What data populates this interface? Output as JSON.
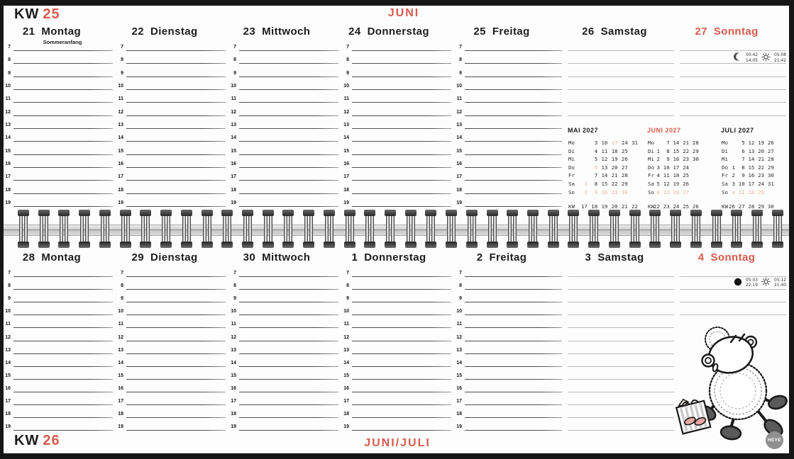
{
  "accent_color": "#d65b4d",
  "pale_accent_color": "#e9b2a4",
  "logo": "HEYE",
  "hours": [
    "7",
    "8",
    "9",
    "10",
    "11",
    "12",
    "13",
    "14",
    "15",
    "16",
    "17",
    "18",
    "19"
  ],
  "top": {
    "kw_label": "KW",
    "kw_number": "25",
    "title": "JUNI",
    "days": [
      {
        "num": "21",
        "name": "Montag",
        "note": "Sommeranfang"
      },
      {
        "num": "22",
        "name": "Dienstag"
      },
      {
        "num": "23",
        "name": "Mittwoch"
      },
      {
        "num": "24",
        "name": "Donnerstag"
      },
      {
        "num": "25",
        "name": "Freitag"
      },
      {
        "num": "26",
        "name": "Samstag"
      },
      {
        "num": "27",
        "name": "Sonntag"
      }
    ],
    "astro": {
      "moon_phase": "waning-crescent",
      "moon_times": [
        "00:42",
        "14:05"
      ],
      "sun_times": [
        "05:08",
        "21:42"
      ]
    }
  },
  "bottom": {
    "kw_label": "KW",
    "kw_number": "26",
    "title": "JUNI/JULI",
    "days": [
      {
        "num": "28",
        "name": "Montag"
      },
      {
        "num": "29",
        "name": "Dienstag"
      },
      {
        "num": "30",
        "name": "Mittwoch"
      },
      {
        "num": "1",
        "name": "Donnerstag"
      },
      {
        "num": "2",
        "name": "Freitag"
      },
      {
        "num": "3",
        "name": "Samstag"
      },
      {
        "num": "4",
        "name": "Sonntag"
      }
    ],
    "astro": {
      "moon_phase": "new-moon",
      "moon_times": [
        "05:03",
        "22:19"
      ],
      "sun_times": [
        "05:12",
        "21:40"
      ]
    }
  },
  "mini_calendars": [
    {
      "title": "MAI 2027",
      "accent": false,
      "rows": [
        {
          "label": "Mo",
          "cells": [
            "",
            "3",
            "10",
            "17",
            "24",
            "31"
          ],
          "hl": [
            3
          ]
        },
        {
          "label": "Di",
          "cells": [
            "",
            "4",
            "11",
            "18",
            "25",
            ""
          ],
          "hl": []
        },
        {
          "label": "Mi",
          "cells": [
            "",
            "5",
            "12",
            "19",
            "26",
            ""
          ],
          "hl": []
        },
        {
          "label": "Do",
          "cells": [
            "",
            "6",
            "13",
            "20",
            "27",
            ""
          ],
          "hl": [
            1
          ]
        },
        {
          "label": "Fr",
          "cells": [
            "",
            "7",
            "14",
            "21",
            "28",
            ""
          ],
          "hl": []
        },
        {
          "label": "Sa",
          "cells": [
            "1",
            "8",
            "15",
            "22",
            "29",
            ""
          ],
          "hl": [
            0
          ]
        },
        {
          "label": "So",
          "cells": [
            "2",
            "9",
            "16",
            "23",
            "30",
            ""
          ],
          "hl": [
            0,
            1,
            2,
            3,
            4
          ]
        }
      ],
      "kw_label": "KW",
      "kw": [
        "17",
        "18",
        "19",
        "20",
        "21",
        "22"
      ]
    },
    {
      "title": "JUNI 2027",
      "accent": true,
      "rows": [
        {
          "label": "Mo",
          "cells": [
            "",
            "7",
            "14",
            "21",
            "28"
          ],
          "hl": []
        },
        {
          "label": "Di",
          "cells": [
            "1",
            "8",
            "15",
            "22",
            "29"
          ],
          "hl": []
        },
        {
          "label": "Mi",
          "cells": [
            "2",
            "9",
            "16",
            "23",
            "30"
          ],
          "hl": []
        },
        {
          "label": "Do",
          "cells": [
            "3",
            "10",
            "17",
            "24",
            ""
          ],
          "hl": []
        },
        {
          "label": "Fr",
          "cells": [
            "4",
            "11",
            "18",
            "25",
            ""
          ],
          "hl": []
        },
        {
          "label": "Sa",
          "cells": [
            "5",
            "12",
            "19",
            "26",
            ""
          ],
          "hl": []
        },
        {
          "label": "So",
          "cells": [
            "6",
            "13",
            "20",
            "27",
            ""
          ],
          "hl": [
            0,
            1,
            2,
            3
          ]
        }
      ],
      "kw_label": "KW",
      "kw": [
        "22",
        "23",
        "24",
        "25",
        "26"
      ]
    },
    {
      "title": "JULI 2027",
      "accent": false,
      "rows": [
        {
          "label": "Mo",
          "cells": [
            "",
            "5",
            "12",
            "19",
            "26"
          ],
          "hl": []
        },
        {
          "label": "Di",
          "cells": [
            "",
            "6",
            "13",
            "20",
            "27"
          ],
          "hl": []
        },
        {
          "label": "Mi",
          "cells": [
            "",
            "7",
            "14",
            "21",
            "28"
          ],
          "hl": []
        },
        {
          "label": "Do",
          "cells": [
            "1",
            "8",
            "15",
            "22",
            "29"
          ],
          "hl": []
        },
        {
          "label": "Fr",
          "cells": [
            "2",
            "9",
            "16",
            "23",
            "30"
          ],
          "hl": []
        },
        {
          "label": "Sa",
          "cells": [
            "3",
            "10",
            "17",
            "24",
            "31"
          ],
          "hl": []
        },
        {
          "label": "So",
          "cells": [
            "4",
            "11",
            "18",
            "25",
            ""
          ],
          "hl": [
            0,
            1,
            2,
            3
          ]
        }
      ],
      "kw_label": "KW",
      "kw": [
        "26",
        "27",
        "28",
        "29",
        "30"
      ]
    }
  ]
}
